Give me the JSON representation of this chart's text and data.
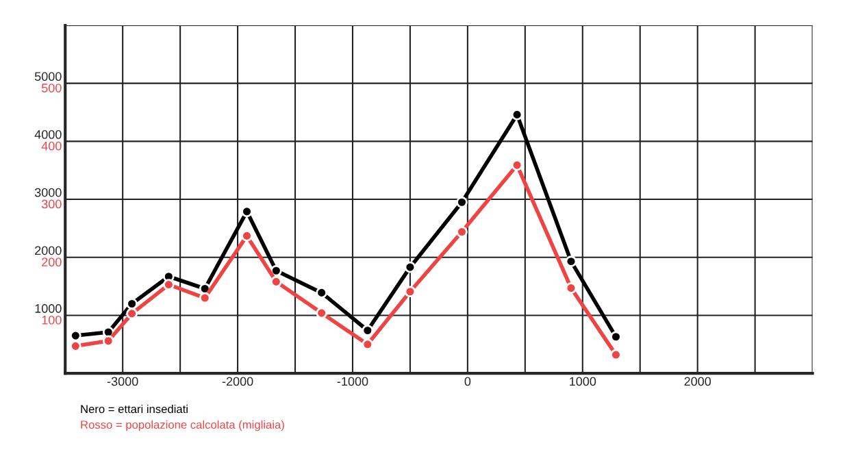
{
  "chart_data": {
    "type": "line",
    "xlim": [
      -3500,
      3000
    ],
    "ylim": [
      0,
      6000
    ],
    "y2lim": [
      0,
      600
    ],
    "xticks": [
      {
        "value": -3500,
        "label": null
      },
      -3000,
      {
        "value": -2500,
        "label": null
      },
      -2000,
      {
        "value": -1500,
        "label": null
      },
      -1000,
      {
        "value": -500,
        "label": null
      },
      0,
      {
        "value": 500,
        "label": null
      },
      1000,
      {
        "value": 1500,
        "label": null
      },
      2000,
      {
        "value": 2500,
        "label": null
      },
      {
        "value": 3000,
        "label": null
      }
    ],
    "yticks": [
      1000,
      2000,
      3000,
      4000,
      5000,
      {
        "value": 6000,
        "label": null
      }
    ],
    "y2ticks": [
      100,
      200,
      300,
      400,
      500
    ],
    "grid": true,
    "marker": "circle",
    "line_style": "solid",
    "legend": "bottom left",
    "series": [
      {
        "name": "Nero = ettari insediati",
        "color": "#000000",
        "x": [
          -3410,
          -3125,
          -2920,
          -2600,
          -2285,
          -1920,
          -1665,
          -1270,
          -870,
          -500,
          -50,
          430,
          900,
          1290
        ],
        "values": [
          650,
          710,
          1200,
          1670,
          1460,
          2790,
          1770,
          1390,
          740,
          1830,
          2950,
          4460,
          1930,
          630
        ]
      },
      {
        "name": "Rosso = popolazione calcolata (migliaia)",
        "color": "#ef4444",
        "axis": "y2",
        "x": [
          -3410,
          -3125,
          -2920,
          -2600,
          -2285,
          -1920,
          -1665,
          -1270,
          -870,
          -500,
          -50,
          430,
          900,
          1290
        ],
        "values": [
          47,
          56,
          103,
          153,
          130,
          237,
          158,
          104,
          50,
          141,
          244,
          359,
          147,
          32
        ]
      }
    ]
  }
}
